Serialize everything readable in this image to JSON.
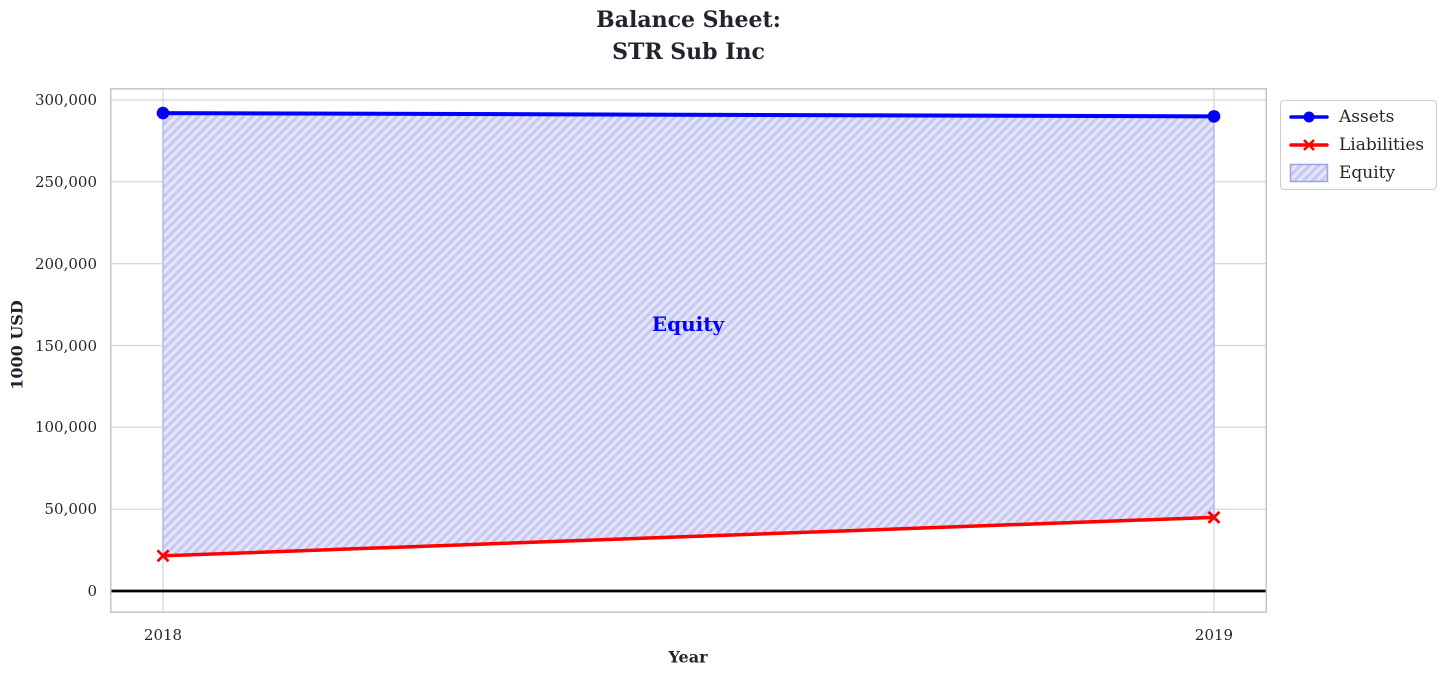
{
  "title": {
    "line1": "Balance Sheet:",
    "line2": "STR Sub Inc"
  },
  "annotation": {
    "equity_label": "Equity",
    "color": "#0000ff"
  },
  "legend": {
    "position": "upper right outside",
    "items": [
      {
        "label": "Assets",
        "glyph": "line-circle-icon",
        "color": "#0000ff"
      },
      {
        "label": "Liabilities",
        "glyph": "line-x-icon",
        "color": "#ff0000"
      },
      {
        "label": "Equity",
        "glyph": "patch-hatch-icon",
        "color": "#9f9fe8"
      }
    ]
  },
  "colors": {
    "assets": "#0000ff",
    "liabilities": "#ff0000",
    "equity_fill": "#e4e4fa",
    "equity_hatch": "#c8c8f0",
    "equity_edge": "#aeaeec",
    "grid": "#d4d4d4",
    "spine": "#c6c6c6",
    "zero_line": "#000000",
    "text": "#262626"
  },
  "chart_data": {
    "type": "line",
    "title": "Balance Sheet:\nSTR Sub Inc",
    "xlabel": "Year",
    "ylabel": "1000 USD",
    "x": [
      2018,
      2019
    ],
    "series": [
      {
        "name": "Assets",
        "values": [
          292000,
          290000
        ],
        "color": "#0000ff",
        "marker": "circle",
        "linewidth": 4
      },
      {
        "name": "Liabilities",
        "values": [
          21500,
          45000
        ],
        "color": "#ff0000",
        "marker": "x",
        "linewidth": 3.5
      }
    ],
    "area": {
      "name": "Equity",
      "between": [
        "Assets",
        "Liabilities"
      ],
      "fill": "#e4e4fa",
      "hatch": "diagonal"
    },
    "ylim": [
      0,
      300000
    ],
    "yticks": [
      0,
      50000,
      100000,
      150000,
      200000,
      250000,
      300000
    ],
    "ytick_labels": [
      "0",
      "50,000",
      "100,000",
      "150,000",
      "200,000",
      "250,000",
      "300,000"
    ],
    "xtick_labels": [
      "2018",
      "2019"
    ],
    "grid": true,
    "zero_line": true,
    "legend_position": "upper right outside"
  }
}
